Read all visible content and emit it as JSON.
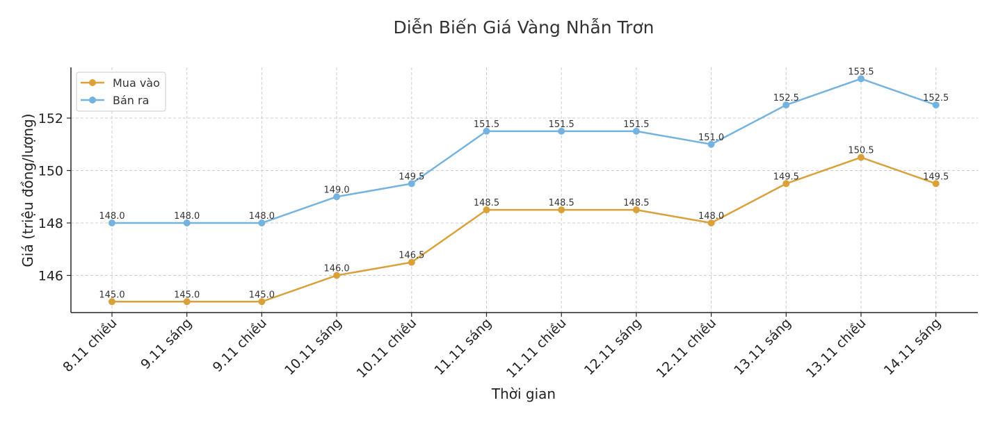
{
  "chart_data": {
    "type": "line",
    "title": "Diễn Biến Giá Vàng Nhẫn Trơn",
    "xlabel": "Thời gian",
    "ylabel": "Giá (triệu đồng/lượng)",
    "categories": [
      "8.11 chiều",
      "9.11 sáng",
      "9.11 chiều",
      "10.11 sáng",
      "10.11 chiều",
      "11.11 sáng",
      "11.11 chiều",
      "12.11 sáng",
      "12.11 chiều",
      "13.11 sáng",
      "13.11 chiều",
      "14.11 sáng"
    ],
    "series": [
      {
        "name": "Mua vào",
        "color": "#DAA03A",
        "values": [
          145.0,
          145.0,
          145.0,
          146.0,
          146.5,
          148.5,
          148.5,
          148.5,
          148.0,
          149.5,
          150.5,
          149.5
        ]
      },
      {
        "name": "Bán ra",
        "color": "#74B3E0",
        "values": [
          148.0,
          148.0,
          148.0,
          149.0,
          149.5,
          151.5,
          151.5,
          151.5,
          151.0,
          152.5,
          153.5,
          152.5
        ]
      }
    ],
    "yticks": [
      146,
      148,
      150,
      152
    ],
    "ylim": [
      144.6,
      153.95
    ],
    "grid": true,
    "legend_position": "upper left",
    "data_labels": true
  }
}
